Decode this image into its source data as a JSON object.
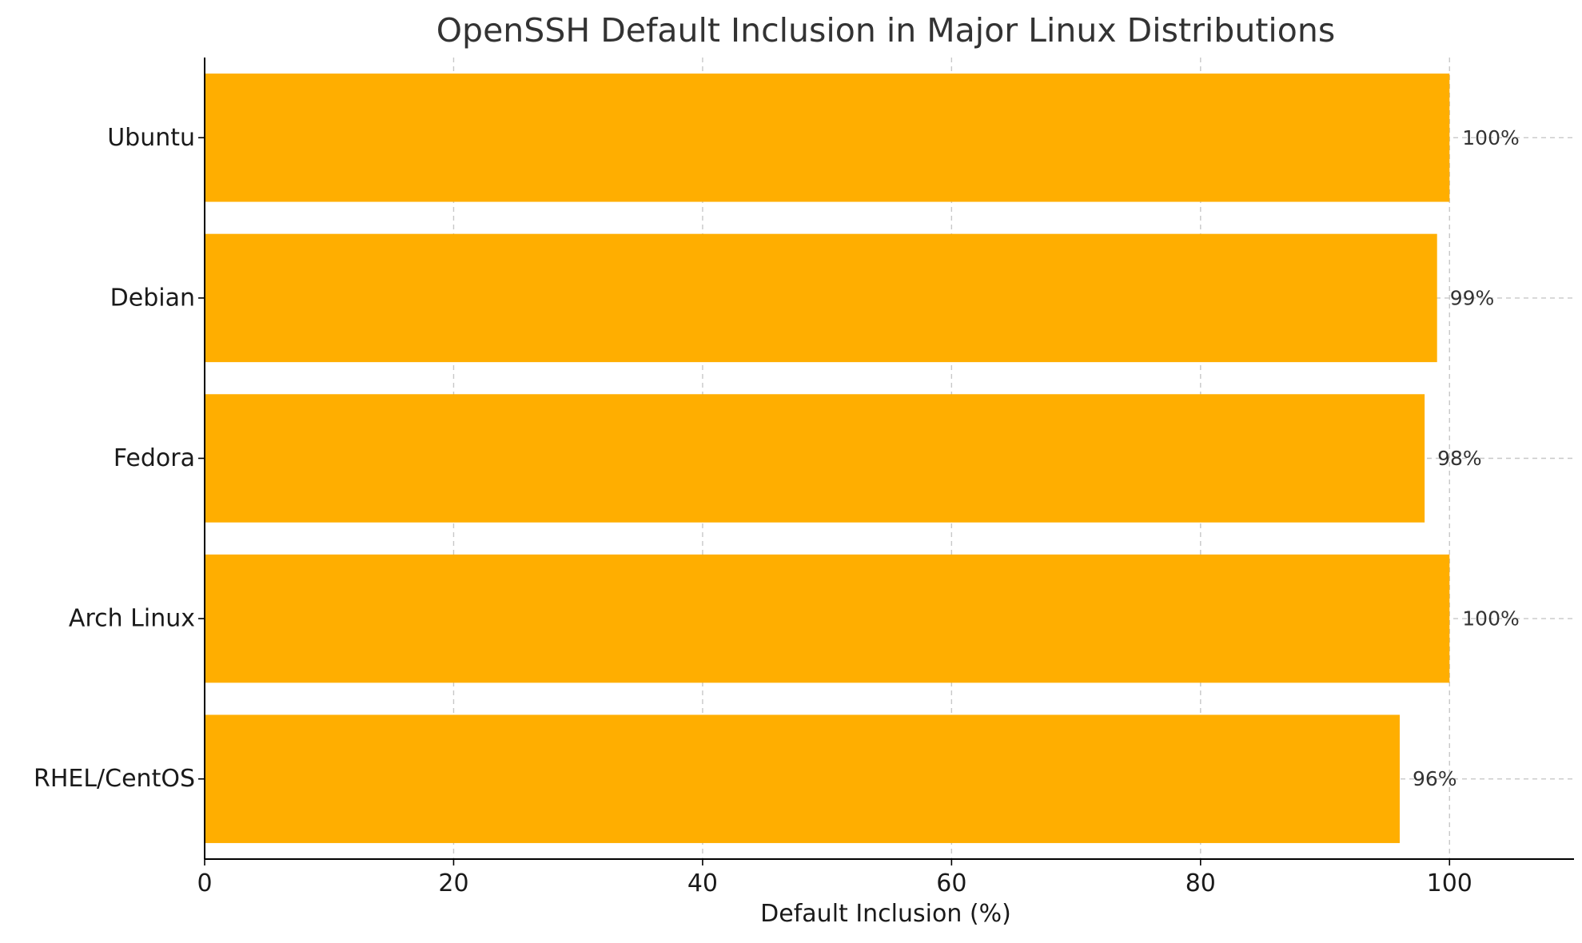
{
  "chart_data": {
    "type": "bar",
    "orientation": "horizontal",
    "title": "OpenSSH Default Inclusion in Major Linux Distributions",
    "xlabel": "Default Inclusion (%)",
    "ylabel": "",
    "categories": [
      "Ubuntu",
      "Debian",
      "Fedora",
      "Arch Linux",
      "RHEL/CentOS"
    ],
    "values": [
      100,
      99,
      98,
      100,
      96
    ],
    "data_labels": [
      "100%",
      "99%",
      "98%",
      "100%",
      "96%"
    ],
    "xlim": [
      0,
      110
    ],
    "xticks": [
      0,
      20,
      40,
      60,
      80,
      100
    ],
    "grid": true,
    "bar_color": "#FFAE00"
  }
}
